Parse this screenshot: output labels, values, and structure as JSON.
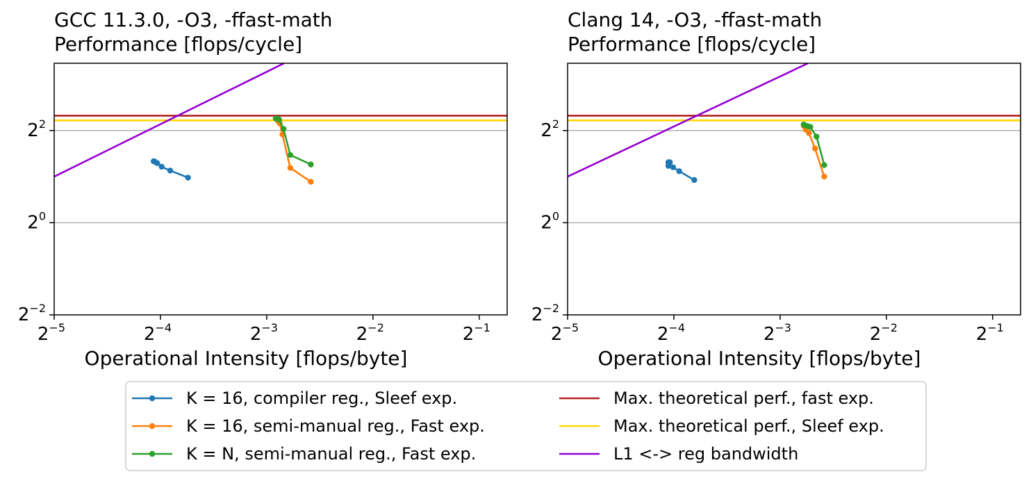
{
  "chart_data": [
    {
      "type": "line",
      "title_lines": [
        "GCC 11.3.0, -O3, -ffast-math",
        "Performance [flops/cycle]"
      ],
      "xlabel": "Operational Intensity [flops/byte]",
      "ylabel": "",
      "xscale": "log2",
      "yscale": "log2",
      "xlim": [
        0.03125,
        0.6
      ],
      "ylim": [
        0.25,
        11
      ],
      "xticks": [
        {
          "base": "2",
          "exp": "−5",
          "value": 0.03125
        },
        {
          "base": "2",
          "exp": "−4",
          "value": 0.0625
        },
        {
          "base": "2",
          "exp": "−3",
          "value": 0.125
        },
        {
          "base": "2",
          "exp": "−2",
          "value": 0.25
        },
        {
          "base": "2",
          "exp": "−1",
          "value": 0.5
        }
      ],
      "yticks": [
        {
          "base": "2",
          "exp": "−2",
          "value": 0.25
        },
        {
          "base": "2",
          "exp": "0",
          "value": 1
        },
        {
          "base": "2",
          "exp": "2",
          "value": 4
        }
      ],
      "ygrid": [
        1,
        4
      ],
      "series": [
        {
          "name": "K = 16, compiler reg., Sleef exp.",
          "color": "#1f77b4",
          "markers": true,
          "x": [
            0.0598,
            0.0603,
            0.0612,
            0.063,
            0.0666,
            0.0748
          ],
          "y": [
            2.52,
            2.5,
            2.45,
            2.32,
            2.19,
            1.97
          ]
        },
        {
          "name": "K = 16, semi-manual reg., Fast exp.",
          "color": "#ff7f0e",
          "markers": true,
          "x": [
            0.1333,
            0.1345,
            0.1361,
            0.1385,
            0.1458,
            0.1667
          ],
          "y": [
            4.75,
            4.62,
            4.45,
            3.77,
            2.28,
            1.85
          ]
        },
        {
          "name": "K = N, semi-manual reg., Fast exp.",
          "color": "#2ca02c",
          "markers": true,
          "x": [
            0.1326,
            0.134,
            0.1355,
            0.1395,
            0.1458,
            0.1667
          ],
          "y": [
            4.79,
            4.77,
            4.72,
            4.1,
            2.77,
            2.4
          ]
        },
        {
          "name": "Max. theoretical perf., fast exp.",
          "color": "#b22222",
          "markers": false,
          "x": [
            0.03125,
            0.6
          ],
          "y": [
            5.0,
            5.0
          ]
        },
        {
          "name": "Max. theoretical perf., Sleef exp.",
          "color": "#ffd700",
          "markers": false,
          "x": [
            0.03125,
            0.6
          ],
          "y": [
            4.66,
            4.66
          ]
        },
        {
          "name": "L1 <-> reg bandwidth",
          "color": "#9400d3",
          "markers": false,
          "x": [
            0.03125,
            0.14
          ],
          "y": [
            2.0,
            11.0
          ]
        }
      ]
    },
    {
      "type": "line",
      "title_lines": [
        "Clang 14, -O3, -ffast-math",
        "Performance [flops/cycle]"
      ],
      "xlabel": "Operational Intensity [flops/byte]",
      "ylabel": "",
      "xscale": "log2",
      "yscale": "log2",
      "xlim": [
        0.03125,
        0.6
      ],
      "ylim": [
        0.25,
        11
      ],
      "xticks": [
        {
          "base": "2",
          "exp": "−5",
          "value": 0.03125
        },
        {
          "base": "2",
          "exp": "−4",
          "value": 0.0625
        },
        {
          "base": "2",
          "exp": "−3",
          "value": 0.125
        },
        {
          "base": "2",
          "exp": "−2",
          "value": 0.25
        },
        {
          "base": "2",
          "exp": "−1",
          "value": 0.5
        }
      ],
      "yticks": [
        {
          "base": "2",
          "exp": "−2",
          "value": 0.25
        },
        {
          "base": "2",
          "exp": "0",
          "value": 1
        },
        {
          "base": "2",
          "exp": "2",
          "value": 4
        }
      ],
      "ygrid": [
        1,
        4
      ],
      "series": [
        {
          "name": "K = 16, compiler reg., Sleef exp.",
          "color": "#1f77b4",
          "markers": true,
          "x": [
            0.0603,
            0.0609,
            0.0603,
            0.0622,
            0.0647,
            0.0714
          ],
          "y": [
            2.48,
            2.48,
            2.35,
            2.3,
            2.17,
            1.9
          ]
        },
        {
          "name": "K = 16, semi-manual reg., Fast exp.",
          "color": "#ff7f0e",
          "markers": true,
          "x": [
            0.1458,
            0.1477,
            0.1508,
            0.157,
            0.1667
          ],
          "y": [
            4.3,
            4.05,
            3.85,
            3.05,
            2.0
          ]
        },
        {
          "name": "K = N, semi-manual reg., Fast exp.",
          "color": "#2ca02c",
          "markers": true,
          "x": [
            0.1458,
            0.147,
            0.1495,
            0.1522,
            0.1585,
            0.1667
          ],
          "y": [
            4.38,
            4.32,
            4.28,
            4.22,
            3.65,
            2.38
          ]
        },
        {
          "name": "Max. theoretical perf., fast exp.",
          "color": "#b22222",
          "markers": false,
          "x": [
            0.03125,
            0.6
          ],
          "y": [
            5.0,
            5.0
          ]
        },
        {
          "name": "Max. theoretical perf., Sleef exp.",
          "color": "#ffd700",
          "markers": false,
          "x": [
            0.03125,
            0.6
          ],
          "y": [
            4.66,
            4.66
          ]
        },
        {
          "name": "L1 <-> reg bandwidth",
          "color": "#9400d3",
          "markers": false,
          "x": [
            0.03125,
            0.15
          ],
          "y": [
            2.0,
            11.0
          ]
        }
      ]
    }
  ],
  "legend": {
    "placement": "bottom-center",
    "columns": 2,
    "items": [
      {
        "label": "K = 16, compiler reg., Sleef exp.",
        "color": "#1f77b4",
        "markers": true
      },
      {
        "label": "K = 16, semi-manual reg., Fast exp.",
        "color": "#ff7f0e",
        "markers": true
      },
      {
        "label": "K = N, semi-manual reg., Fast exp.",
        "color": "#2ca02c",
        "markers": true
      },
      {
        "label": "Max. theoretical perf., fast exp.",
        "color": "#b22222",
        "markers": false
      },
      {
        "label": "Max. theoretical perf., Sleef exp.",
        "color": "#ffd700",
        "markers": false
      },
      {
        "label": "L1 <-> reg bandwidth",
        "color": "#9400d3",
        "markers": false
      }
    ]
  }
}
